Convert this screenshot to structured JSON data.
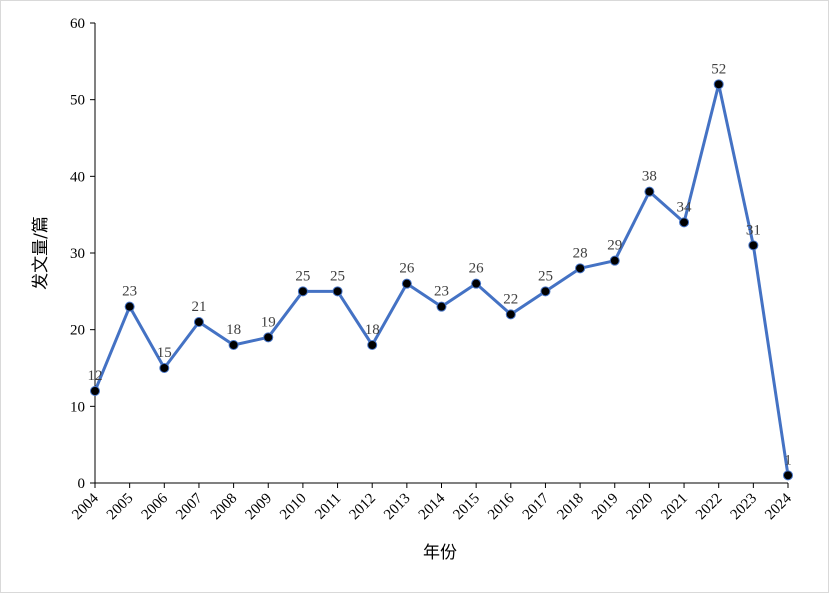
{
  "chart_data": {
    "type": "line",
    "xlabel": "年份",
    "ylabel": "发文量/篇",
    "ylim": [
      0,
      60
    ],
    "yticks": [
      0,
      10,
      20,
      30,
      40,
      50,
      60
    ],
    "grid": false,
    "legend": "none",
    "line_color": "#4472C4",
    "marker_color": "#000000",
    "x": [
      "2004",
      "2005",
      "2006",
      "2007",
      "2008",
      "2009",
      "2010",
      "2011",
      "2012",
      "2013",
      "2014",
      "2015",
      "2016",
      "2017",
      "2018",
      "2019",
      "2020",
      "2021",
      "2022",
      "2023",
      "2024"
    ],
    "values": [
      12,
      23,
      15,
      21,
      18,
      19,
      25,
      25,
      18,
      26,
      23,
      26,
      22,
      25,
      28,
      29,
      38,
      34,
      52,
      31,
      1
    ]
  }
}
